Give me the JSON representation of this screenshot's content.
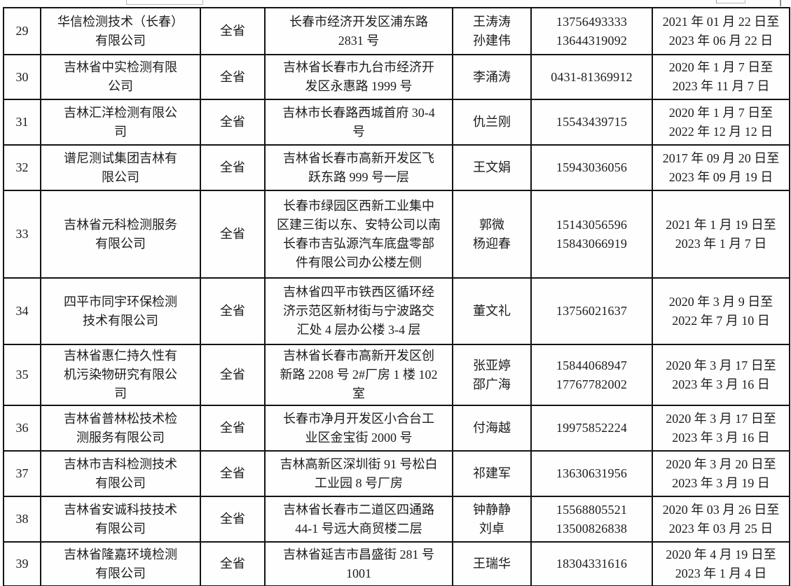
{
  "page": {
    "background_color": "#fefefe",
    "border_color": "#141414",
    "text_color": "#1c1c1c",
    "region_value_all_rows": "全省"
  },
  "table": {
    "rows": [
      {
        "no": "29",
        "company": [
          "华信检测技术（长春）",
          "有限公司"
        ],
        "region": "全省",
        "address": [
          "长春市经济开发区浦东路",
          "2831 号"
        ],
        "contacts": [
          "王涛涛",
          "孙建伟"
        ],
        "phones": [
          "13756493333",
          "13644319092"
        ],
        "period": [
          "2021 年 01 月 22 日至",
          "2023 年 06 月 22 日"
        ]
      },
      {
        "no": "30",
        "company": [
          "吉林省中实检测有限",
          "公司"
        ],
        "region": "全省",
        "address": [
          "吉林省长春市九台市经济开",
          "发区永惠路 1999 号"
        ],
        "contacts": [
          "李涌涛"
        ],
        "phones": [
          "0431-81369912"
        ],
        "period": [
          "2020 年 1 月 7 日至",
          "2023 年 11 月 7 日"
        ]
      },
      {
        "no": "31",
        "company": [
          "吉林汇洋检测有限公",
          "司"
        ],
        "region": "全省",
        "address": [
          "吉林市长春路西城首府 30-4",
          "号"
        ],
        "contacts": [
          "仇兰刚"
        ],
        "phones": [
          "15543439715"
        ],
        "period": [
          "2020 年 1 月 7 日至",
          "2022 年 12 月 12 日"
        ]
      },
      {
        "no": "32",
        "company": [
          "谱尼测试集团吉林有",
          "限公司"
        ],
        "region": "全省",
        "address": [
          "吉林省长春市高新开发区飞",
          "跃东路 999 号一层"
        ],
        "contacts": [
          "王文娟"
        ],
        "phones": [
          "15943036056"
        ],
        "period": [
          "2017 年 09 月 20 日至",
          "2023 年 09 月 19 日"
        ]
      },
      {
        "no": "33",
        "company": [
          "吉林省元科检测服务",
          "有限公司"
        ],
        "region": "全省",
        "address": [
          "长春市绿园区西新工业集中",
          "区建三街以东、安特公司以南",
          "长春市吉弘源汽车底盘零部",
          "件有限公司办公楼左侧"
        ],
        "contacts": [
          "郭微",
          "杨迎春"
        ],
        "phones": [
          "15143056596",
          "15843066919"
        ],
        "period": [
          "2021 年 1 月 19 日至",
          "2023 年 1 月 7 日"
        ]
      },
      {
        "no": "34",
        "company": [
          "四平市同宇环保检测",
          "技术有限公司"
        ],
        "region": "全省",
        "address": [
          "吉林省四平市铁西区循环经",
          "济示范区新材街与宁波路交",
          "汇处 4 层办公楼 3-4 层"
        ],
        "contacts": [
          "董文礼"
        ],
        "phones": [
          "13756021637"
        ],
        "period": [
          "2020 年 3 月 9 日至",
          "2022 年 7 月 10 日"
        ]
      },
      {
        "no": "35",
        "company": [
          "吉林省惠仁持久性有",
          "机污染物研究有限公",
          "司"
        ],
        "region": "全省",
        "address": [
          "吉林省长春市高新开发区创",
          "新路 2208 号 2#厂房 1 楼 102",
          "室"
        ],
        "contacts": [
          "张亚婷",
          "邵广海"
        ],
        "phones": [
          "15844068947",
          "17767782002"
        ],
        "period": [
          "2020 年 3 月 17 日至",
          "2023 年 3 月 16 日"
        ]
      },
      {
        "no": "36",
        "company": [
          "吉林省普林松技术检",
          "测服务有限公司"
        ],
        "region": "全省",
        "address": [
          "长春市净月开发区小合台工",
          "业区金宝街 2000 号"
        ],
        "contacts": [
          "付海越"
        ],
        "phones": [
          "19975852224"
        ],
        "period": [
          "2020 年 3 月 17 日至",
          "2023 年 3 月 16 日"
        ]
      },
      {
        "no": "37",
        "company": [
          "吉林市吉科检测技术",
          "有限公司"
        ],
        "region": "全省",
        "address": [
          "吉林高新区深圳街 91 号松白",
          "工业园 8 号厂房"
        ],
        "contacts": [
          "祁建军"
        ],
        "phones": [
          "13630631956"
        ],
        "period": [
          "2020 年 3 月 20 日至",
          "2023 年 3 月 19 日"
        ]
      },
      {
        "no": "38",
        "company": [
          "吉林省安诚科技技术",
          "有限公司"
        ],
        "region": "全省",
        "address": [
          "吉林省长春市二道区四通路",
          "44-1 号远大商贸楼二层"
        ],
        "contacts": [
          "钟静静",
          "刘卓"
        ],
        "phones": [
          "15568805521",
          "13500826838"
        ],
        "period": [
          "2020 年 03 月 26 日至",
          "2023 年 03 月 25 日"
        ]
      },
      {
        "no": "39",
        "company": [
          "吉林省隆嘉环境检测",
          "有限公司"
        ],
        "region": "全省",
        "address": [
          "吉林省延吉市昌盛街 281 号",
          "1001"
        ],
        "contacts": [
          "王瑞华"
        ],
        "phones": [
          "18304331616"
        ],
        "period": [
          "2020 年 4 月 19 日至",
          "2023 年 1 月 4 日"
        ]
      }
    ]
  }
}
